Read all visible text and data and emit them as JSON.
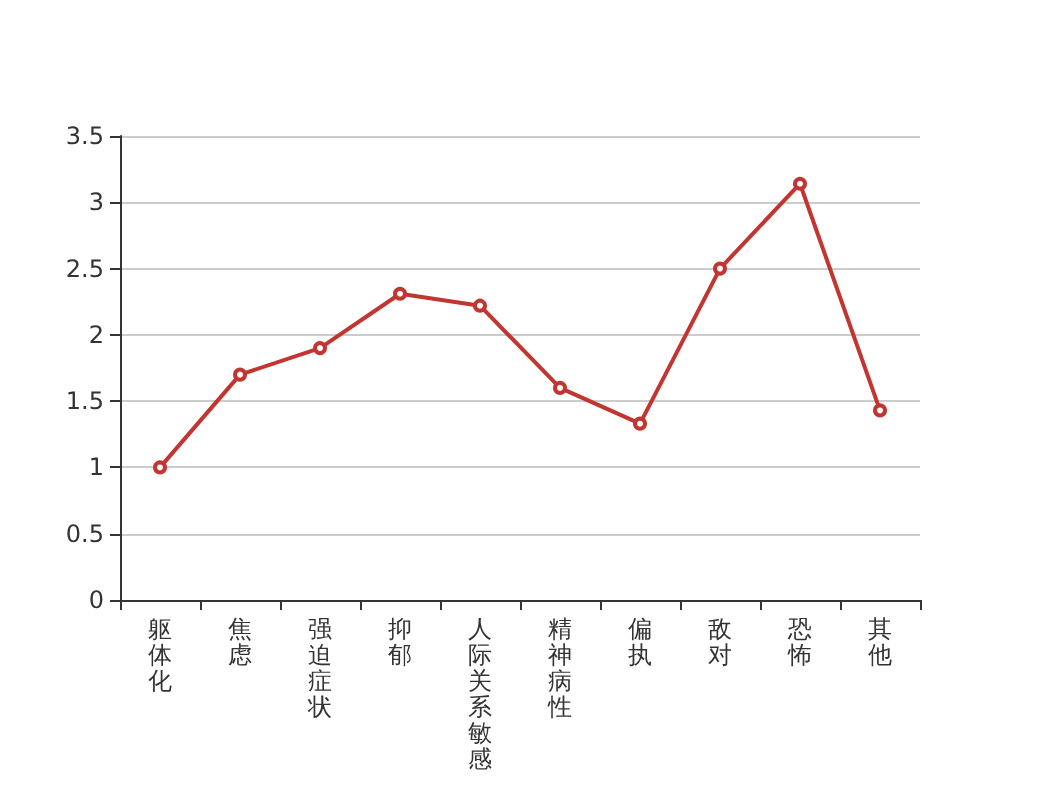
{
  "chart_data": {
    "type": "line",
    "categories": [
      "躯体化",
      "焦虑",
      "强迫症状",
      "抑郁",
      "人际关系敏感",
      "精神病性",
      "偏执",
      "敌对",
      "恐怖",
      "其他"
    ],
    "values": [
      1.0,
      1.7,
      1.9,
      2.31,
      2.22,
      1.6,
      1.33,
      2.5,
      3.14,
      1.43
    ],
    "color": "#c23531",
    "ylim": [
      0,
      3.5
    ],
    "yticks": [
      0,
      0.5,
      1,
      1.5,
      2,
      2.5,
      3,
      3.5
    ],
    "grid": "y",
    "marker": "circle",
    "line_style": "solid"
  }
}
